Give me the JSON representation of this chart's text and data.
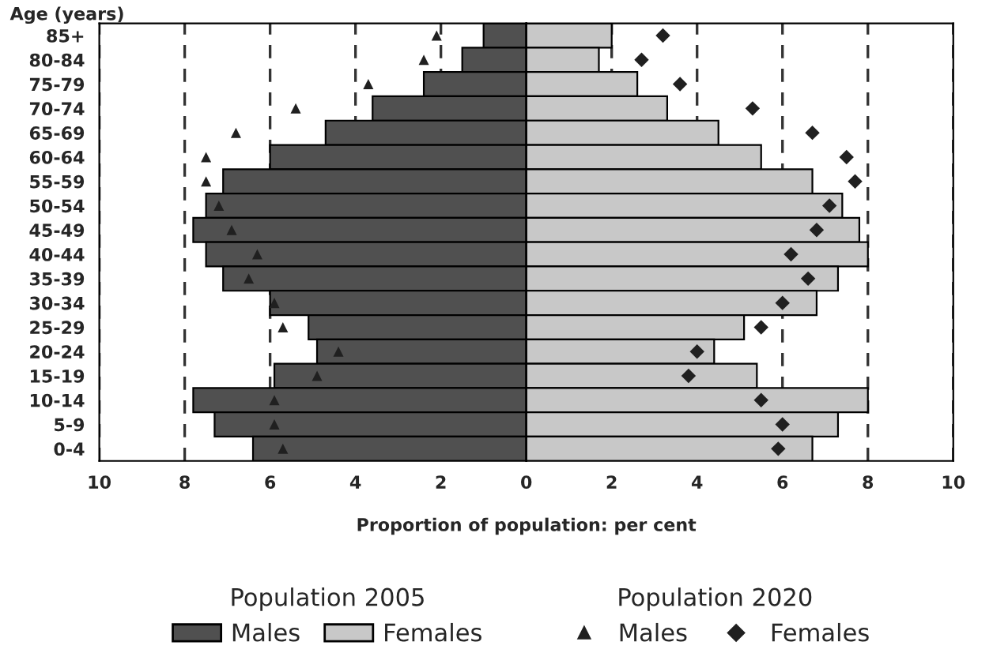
{
  "chart_data": [
    {
      "type": "bar",
      "orientation": "horizontal",
      "xlabel": "Proportion of population: per cent",
      "ylabel": "Age (years)",
      "categories": [
        "85+",
        "80-84",
        "75-79",
        "70-74",
        "65-69",
        "60-64",
        "55-59",
        "50-54",
        "45-49",
        "40-44",
        "35-39",
        "30-34",
        "25-29",
        "20-24",
        "15-19",
        "10-14",
        "5-9",
        "0-4"
      ],
      "series": [
        {
          "name": "Males",
          "color": "#505050",
          "values": [
            1.0,
            1.5,
            2.4,
            3.6,
            4.7,
            6.0,
            7.1,
            7.5,
            7.8,
            7.5,
            7.1,
            6.0,
            5.1,
            4.9,
            5.9,
            7.8,
            7.3,
            6.4
          ]
        },
        {
          "name": "Males",
          "type": "scatter",
          "marker": "triangle",
          "color": "#202020",
          "values": [
            2.1,
            2.4,
            3.7,
            5.4,
            6.8,
            7.5,
            7.5,
            7.2,
            6.9,
            6.3,
            6.5,
            5.9,
            5.7,
            4.4,
            4.9,
            5.9,
            5.9,
            5.7
          ]
        }
      ],
      "xlim": [
        10,
        0
      ],
      "xticks": [
        10,
        8,
        6,
        4,
        2
      ],
      "grid": "x",
      "line_style": "dashed",
      "legend": "bottom",
      "annotations": [
        "Population 2005",
        "Population 2020"
      ]
    },
    {
      "type": "bar",
      "orientation": "horizontal",
      "series": [
        {
          "name": "Females",
          "color": "#c8c8c8",
          "values": [
            2.0,
            1.7,
            2.6,
            3.3,
            4.5,
            5.5,
            6.7,
            7.4,
            7.8,
            8.0,
            7.3,
            6.8,
            5.1,
            4.4,
            5.4,
            8.0,
            7.3,
            6.7
          ]
        },
        {
          "name": "Females",
          "type": "scatter",
          "marker": "diamond",
          "color": "#202020",
          "values": [
            3.2,
            2.7,
            3.6,
            5.3,
            6.7,
            7.5,
            7.7,
            7.1,
            6.8,
            6.2,
            6.6,
            6.0,
            5.5,
            4.0,
            3.8,
            5.5,
            6.0,
            5.9
          ]
        }
      ],
      "xlim": [
        0,
        10
      ],
      "xticks": [
        0,
        2,
        4,
        6,
        8,
        10
      ],
      "tick_labels": "x",
      "grid": "x",
      "line_style": "dashed",
      "legend": "bottom"
    }
  ]
}
